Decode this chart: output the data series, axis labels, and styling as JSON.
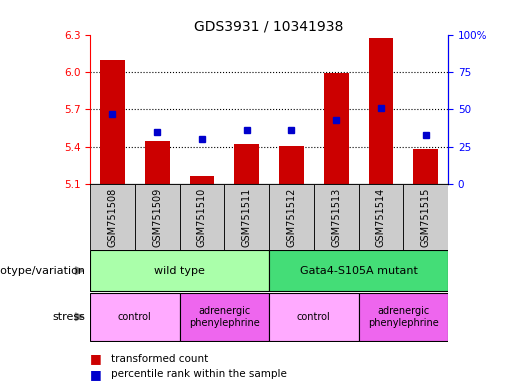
{
  "title": "GDS3931 / 10341938",
  "samples": [
    "GSM751508",
    "GSM751509",
    "GSM751510",
    "GSM751511",
    "GSM751512",
    "GSM751513",
    "GSM751514",
    "GSM751515"
  ],
  "transformed_count": [
    6.1,
    5.45,
    5.17,
    5.42,
    5.41,
    5.99,
    6.27,
    5.38
  ],
  "percentile_rank": [
    47,
    35,
    30,
    36,
    36,
    43,
    51,
    33
  ],
  "ylim_left": [
    5.1,
    6.3
  ],
  "ylim_right": [
    0,
    100
  ],
  "yticks_left": [
    5.1,
    5.4,
    5.7,
    6.0,
    6.3
  ],
  "yticks_right": [
    0,
    25,
    50,
    75,
    100
  ],
  "bar_color": "#cc0000",
  "dot_color": "#0000cc",
  "genotype_groups": [
    {
      "label": "wild type",
      "start": 0,
      "end": 3,
      "color": "#aaffaa"
    },
    {
      "label": "Gata4-S105A mutant",
      "start": 4,
      "end": 7,
      "color": "#44dd77"
    }
  ],
  "stress_groups": [
    {
      "label": "control",
      "start": 0,
      "end": 1,
      "color": "#ffaaff"
    },
    {
      "label": "adrenergic\nphenylephrine",
      "start": 2,
      "end": 3,
      "color": "#ee66ee"
    },
    {
      "label": "control",
      "start": 4,
      "end": 5,
      "color": "#ffaaff"
    },
    {
      "label": "adrenergic\nphenylephrine",
      "start": 6,
      "end": 7,
      "color": "#ee66ee"
    }
  ],
  "sample_bg_color": "#cccccc",
  "genotype_label": "genotype/variation",
  "stress_label": "stress",
  "legend_bar_label": "transformed count",
  "legend_dot_label": "percentile rank within the sample",
  "title_fontsize": 10,
  "tick_fontsize": 7.5,
  "label_fontsize": 8,
  "sample_label_fontsize": 7
}
